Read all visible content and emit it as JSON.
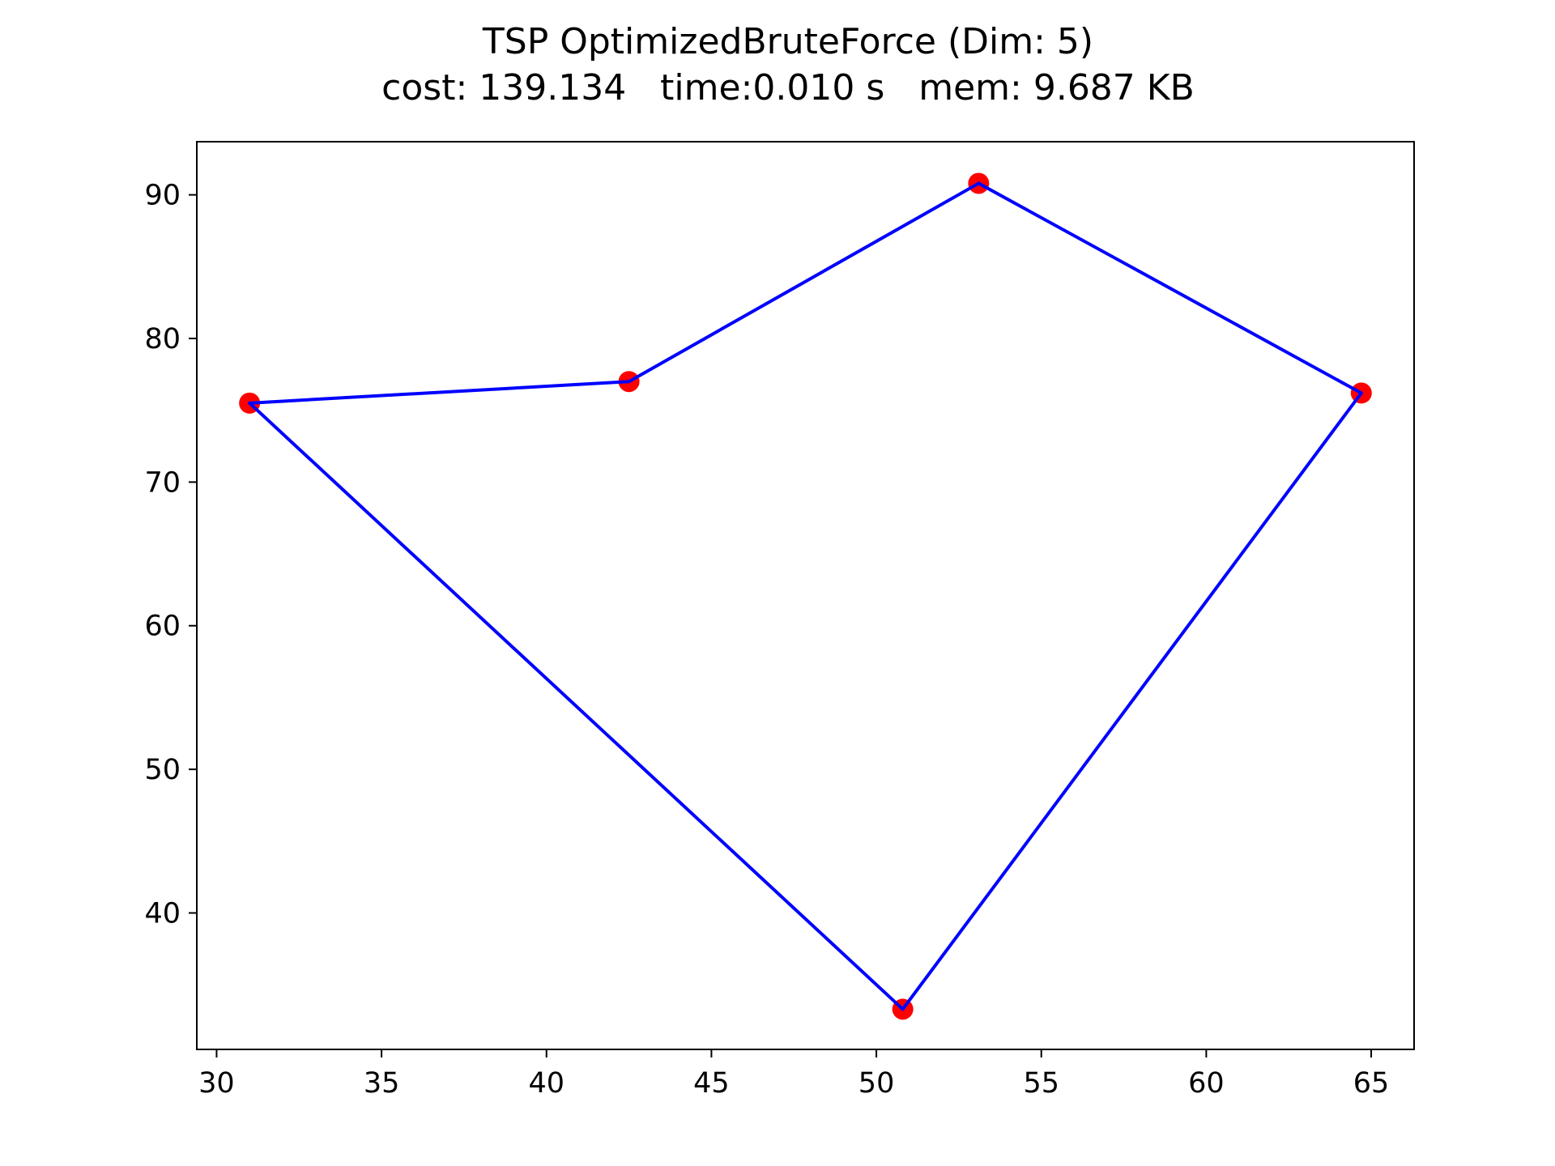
{
  "chart_data": {
    "type": "scatter",
    "title": "TSP OptimizedBruteForce (Dim: 5)",
    "subtitle": "cost: 139.134   time:0.010 s   mem: 9.687 KB",
    "xlabel": "",
    "ylabel": "",
    "xlim": [
      29.4,
      66.3
    ],
    "ylim": [
      30.5,
      93.7
    ],
    "xticks": [
      30,
      35,
      40,
      45,
      50,
      55,
      60,
      65
    ],
    "yticks": [
      40,
      50,
      60,
      70,
      80,
      90
    ],
    "grid": false,
    "legend": "none",
    "points": {
      "x": [
        31.0,
        42.5,
        53.1,
        64.7,
        50.8
      ],
      "y": [
        75.5,
        77.0,
        90.8,
        76.2,
        33.3
      ],
      "color": "#ff0000"
    },
    "tour": {
      "order": [
        0,
        1,
        2,
        3,
        4,
        0
      ],
      "color": "#0000ff"
    }
  }
}
